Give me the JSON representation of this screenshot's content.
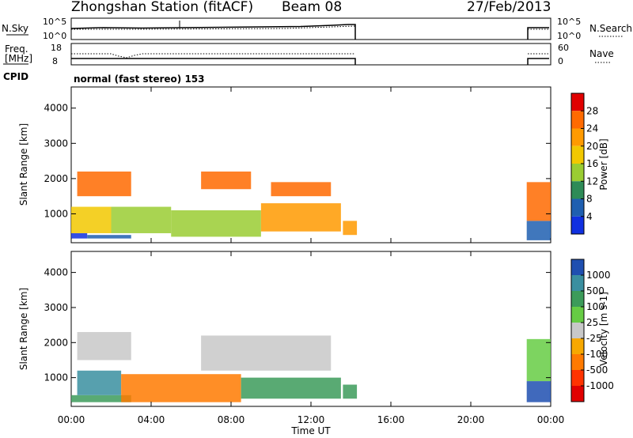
{
  "header": {
    "station": "Zhongshan Station (fitACF)",
    "beam": "Beam 08",
    "date": "27/Feb/2013"
  },
  "aux_panels": {
    "nsky_label": "N.Sky",
    "nsky_ticks": [
      "10^5",
      "10^0"
    ],
    "nsearch_label": "N.Search",
    "nsearch_ticks": [
      "10^5",
      "10^0"
    ],
    "freq_label_1": "Freq.",
    "freq_label_2": "[MHz]",
    "freq_ticks": [
      "18",
      "8"
    ],
    "nave_label": "Nave",
    "nave_ticks": [
      "60",
      "0"
    ],
    "cpid_label": "CPID",
    "mode_text": "normal (fast stereo) 153"
  },
  "chart_data": [
    {
      "type": "heatmap",
      "name": "power-panel",
      "ylabel": "Slant Range [km]",
      "xlabel": "",
      "xlim": [
        0,
        24
      ],
      "ylim": [
        180,
        4600
      ],
      "yticks": [
        "4000",
        "3000",
        "2000",
        "1000"
      ],
      "colorbar": {
        "label": "Power [dB]",
        "ticks": [
          "28",
          "24",
          "20",
          "16",
          "12",
          "8",
          "4"
        ],
        "colors": [
          "#e00000",
          "#ff6a00",
          "#ff9a00",
          "#f2c800",
          "#9acd32",
          "#2e8b57",
          "#1f5fb0",
          "#1030e0"
        ]
      },
      "data_blocks": [
        {
          "t": [
            0.0,
            0.8
          ],
          "r": [
            300,
            450
          ],
          "level": 7
        },
        {
          "t": [
            0.8,
            3.0
          ],
          "r": [
            300,
            400
          ],
          "level": 6
        },
        {
          "t": [
            0.0,
            2.0
          ],
          "r": [
            450,
            1200
          ],
          "level": 3
        },
        {
          "t": [
            2.0,
            5.0
          ],
          "r": [
            450,
            1200
          ],
          "level": 4
        },
        {
          "t": [
            5.0,
            9.5
          ],
          "r": [
            350,
            1100
          ],
          "level": 4
        },
        {
          "t": [
            9.5,
            13.5
          ],
          "r": [
            500,
            1300
          ],
          "level": 2
        },
        {
          "t": [
            0.3,
            3.0
          ],
          "r": [
            1500,
            2200
          ],
          "level": 1
        },
        {
          "t": [
            6.5,
            9.0
          ],
          "r": [
            1700,
            2200
          ],
          "level": 1
        },
        {
          "t": [
            10.0,
            13.0
          ],
          "r": [
            1500,
            1900
          ],
          "level": 1
        },
        {
          "t": [
            13.6,
            14.3
          ],
          "r": [
            400,
            800
          ],
          "level": 2
        },
        {
          "t": [
            22.8,
            24.0
          ],
          "r": [
            250,
            800
          ],
          "level": 6
        },
        {
          "t": [
            22.8,
            24.0
          ],
          "r": [
            800,
            1900
          ],
          "level": 1
        }
      ]
    },
    {
      "type": "heatmap",
      "name": "velocity-panel",
      "ylabel": "Slant Range [km]",
      "xlabel": "Time UT",
      "xlim": [
        0,
        24
      ],
      "ylim": [
        180,
        4600
      ],
      "yticks": [
        "4000",
        "3000",
        "2000",
        "1000"
      ],
      "xticks": [
        "00:00",
        "04:00",
        "08:00",
        "12:00",
        "16:00",
        "20:00",
        "00:00"
      ],
      "colorbar": {
        "label": "Velocity [m s-1]",
        "ticks": [
          "1000",
          "500",
          "100",
          "25",
          "-25",
          "-100",
          "-500",
          "-1000"
        ],
        "colors": [
          "#1f4fb0",
          "#3a8fa0",
          "#3c9b5a",
          "#66cc44",
          "#c8c8c8",
          "#f7a800",
          "#ff7a00",
          "#ff3300",
          "#e00000"
        ]
      },
      "data_blocks": [
        {
          "t": [
            0.0,
            3.0
          ],
          "r": [
            300,
            500
          ],
          "level": 2
        },
        {
          "t": [
            0.3,
            2.5
          ],
          "r": [
            500,
            1200
          ],
          "level": 1
        },
        {
          "t": [
            2.5,
            8.5
          ],
          "r": [
            300,
            1100
          ],
          "level": 6
        },
        {
          "t": [
            8.5,
            13.5
          ],
          "r": [
            400,
            1000
          ],
          "level": 2
        },
        {
          "t": [
            0.3,
            3.0
          ],
          "r": [
            1500,
            2300
          ],
          "level": 4
        },
        {
          "t": [
            6.5,
            13.0
          ],
          "r": [
            1200,
            2200
          ],
          "level": 4
        },
        {
          "t": [
            13.6,
            14.3
          ],
          "r": [
            400,
            800
          ],
          "level": 2
        },
        {
          "t": [
            22.8,
            24.0
          ],
          "r": [
            300,
            900
          ],
          "level": 0
        },
        {
          "t": [
            22.8,
            24.0
          ],
          "r": [
            900,
            2100
          ],
          "level": 3
        }
      ]
    }
  ]
}
